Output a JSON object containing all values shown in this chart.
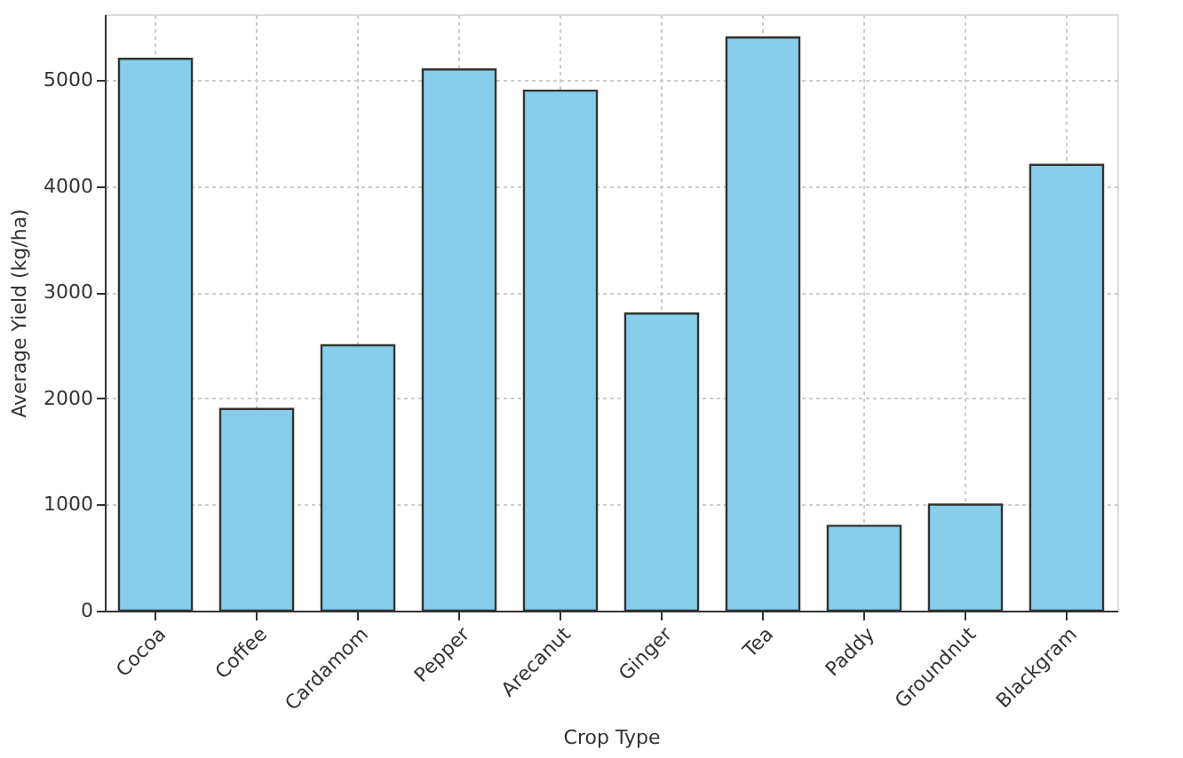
{
  "chart_data": {
    "type": "bar",
    "xlabel": "Crop Type",
    "ylabel": "Average Yield (kg/ha)",
    "categories": [
      "Cocoa",
      "Coffee",
      "Cardamom",
      "Pepper",
      "Arecanut",
      "Ginger",
      "Tea",
      "Paddy",
      "Groundnut",
      "Blackgram"
    ],
    "values": [
      5200,
      1900,
      2500,
      5100,
      4900,
      2800,
      5400,
      800,
      1000,
      4200
    ],
    "color": "#87ceeb",
    "ylim": [
      0,
      5620
    ],
    "yticks": [
      0,
      1000,
      2000,
      3000,
      4000,
      5000
    ],
    "grid": true
  }
}
